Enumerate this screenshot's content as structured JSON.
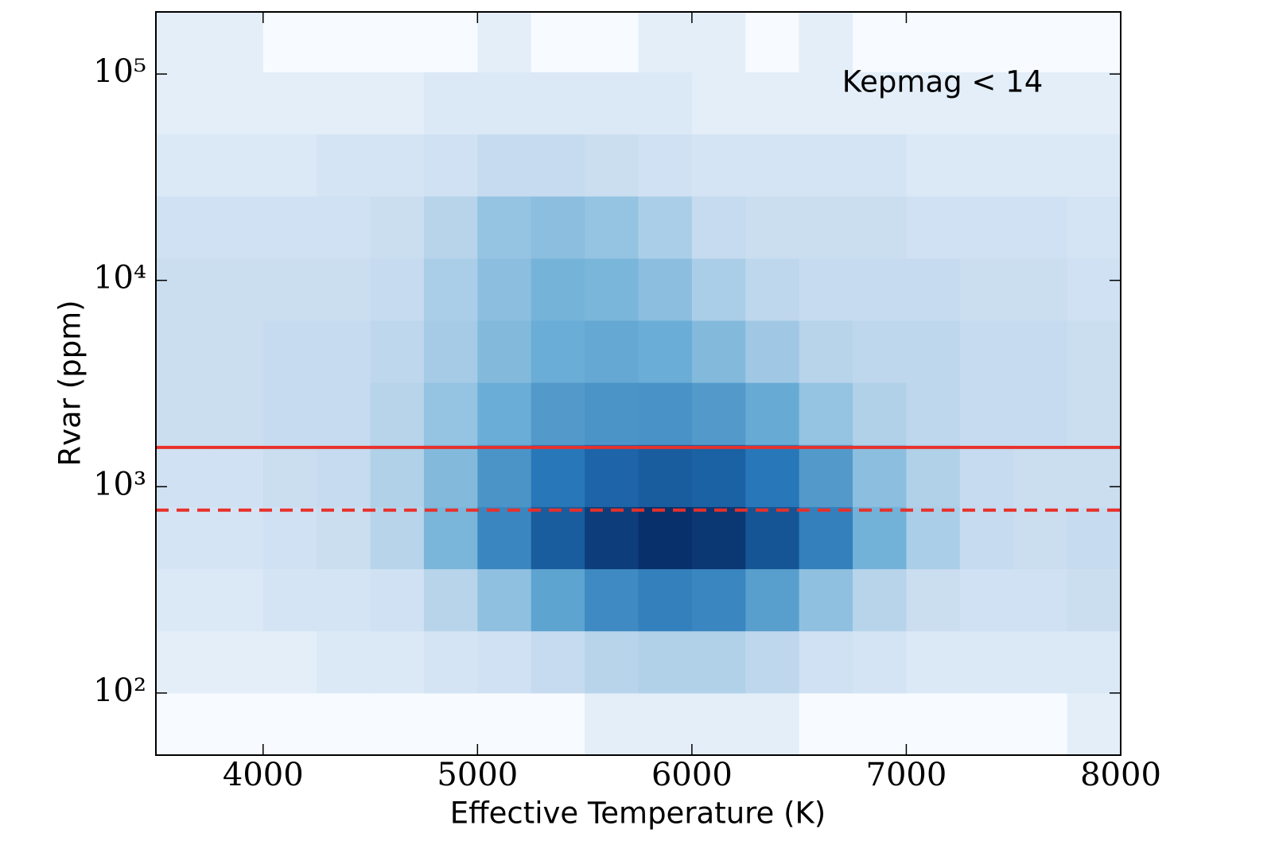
{
  "chart_data": {
    "type": "heatmap",
    "xlabel": "Effective Temperature (K)",
    "ylabel": "Rvar (ppm)",
    "annotation": "Kepmag < 14",
    "xlim": [
      3500,
      8000
    ],
    "xticks": [
      4000,
      5000,
      6000,
      7000,
      8000
    ],
    "ylim": [
      50,
      200000
    ],
    "yscale": "log",
    "yticks": [
      {
        "value": 100,
        "label": "10²"
      },
      {
        "value": 1000,
        "label": "10³"
      },
      {
        "value": 10000,
        "label": "10⁴"
      },
      {
        "value": 100000,
        "label": "10⁵"
      }
    ],
    "background": "#f7fbff",
    "colors": [
      "#f7fbff",
      "#c6dbef",
      "#6baed6",
      "#2171b5",
      "#08306b"
    ],
    "xbins": [
      3500,
      3750,
      4000,
      4250,
      4500,
      4750,
      5000,
      5250,
      5500,
      5750,
      6000,
      6250,
      6500,
      6750,
      7000,
      7250,
      7500,
      7750,
      8000
    ],
    "ybins": [
      50,
      100,
      200,
      400,
      800,
      1600,
      3200,
      6400,
      12800,
      25600,
      51200,
      102400,
      204800
    ],
    "counts": [
      [
        0,
        0,
        0,
        0,
        0,
        0,
        0,
        0,
        1,
        1,
        1,
        1,
        0,
        0,
        0,
        0,
        0,
        1
      ],
      [
        1,
        1,
        1,
        2,
        2,
        3,
        4,
        6,
        8,
        9,
        9,
        7,
        4,
        3,
        2,
        2,
        2,
        2
      ],
      [
        2,
        2,
        3,
        3,
        4,
        8,
        15,
        28,
        40,
        45,
        42,
        30,
        15,
        8,
        5,
        4,
        4,
        5
      ],
      [
        3,
        3,
        4,
        5,
        8,
        20,
        42,
        65,
        85,
        95,
        90,
        70,
        45,
        22,
        10,
        6,
        5,
        6
      ],
      [
        4,
        4,
        5,
        6,
        9,
        18,
        35,
        50,
        60,
        65,
        62,
        50,
        32,
        16,
        9,
        6,
        5,
        5
      ],
      [
        5,
        5,
        6,
        6,
        8,
        14,
        24,
        32,
        35,
        36,
        32,
        25,
        14,
        9,
        7,
        6,
        6,
        5
      ],
      [
        5,
        5,
        6,
        6,
        7,
        11,
        18,
        24,
        26,
        24,
        18,
        12,
        8,
        7,
        7,
        6,
        6,
        5
      ],
      [
        5,
        5,
        5,
        5,
        6,
        10,
        16,
        21,
        20,
        16,
        10,
        7,
        6,
        6,
        6,
        5,
        5,
        4
      ],
      [
        4,
        4,
        4,
        4,
        5,
        8,
        14,
        16,
        14,
        10,
        6,
        5,
        5,
        5,
        4,
        4,
        4,
        3
      ],
      [
        2,
        2,
        2,
        3,
        3,
        4,
        6,
        6,
        5,
        4,
        3,
        3,
        3,
        3,
        2,
        2,
        2,
        2
      ],
      [
        1,
        1,
        1,
        1,
        1,
        2,
        2,
        2,
        2,
        2,
        1,
        1,
        1,
        1,
        1,
        1,
        1,
        1
      ],
      [
        1,
        1,
        0,
        0,
        0,
        0,
        1,
        0,
        0,
        1,
        1,
        0,
        1,
        0,
        0,
        0,
        0,
        0
      ]
    ],
    "hlines": [
      {
        "value": 1550,
        "style": "solid",
        "color": "#e8302a"
      },
      {
        "value": 770,
        "style": "dashed",
        "color": "#e8302a"
      }
    ]
  }
}
